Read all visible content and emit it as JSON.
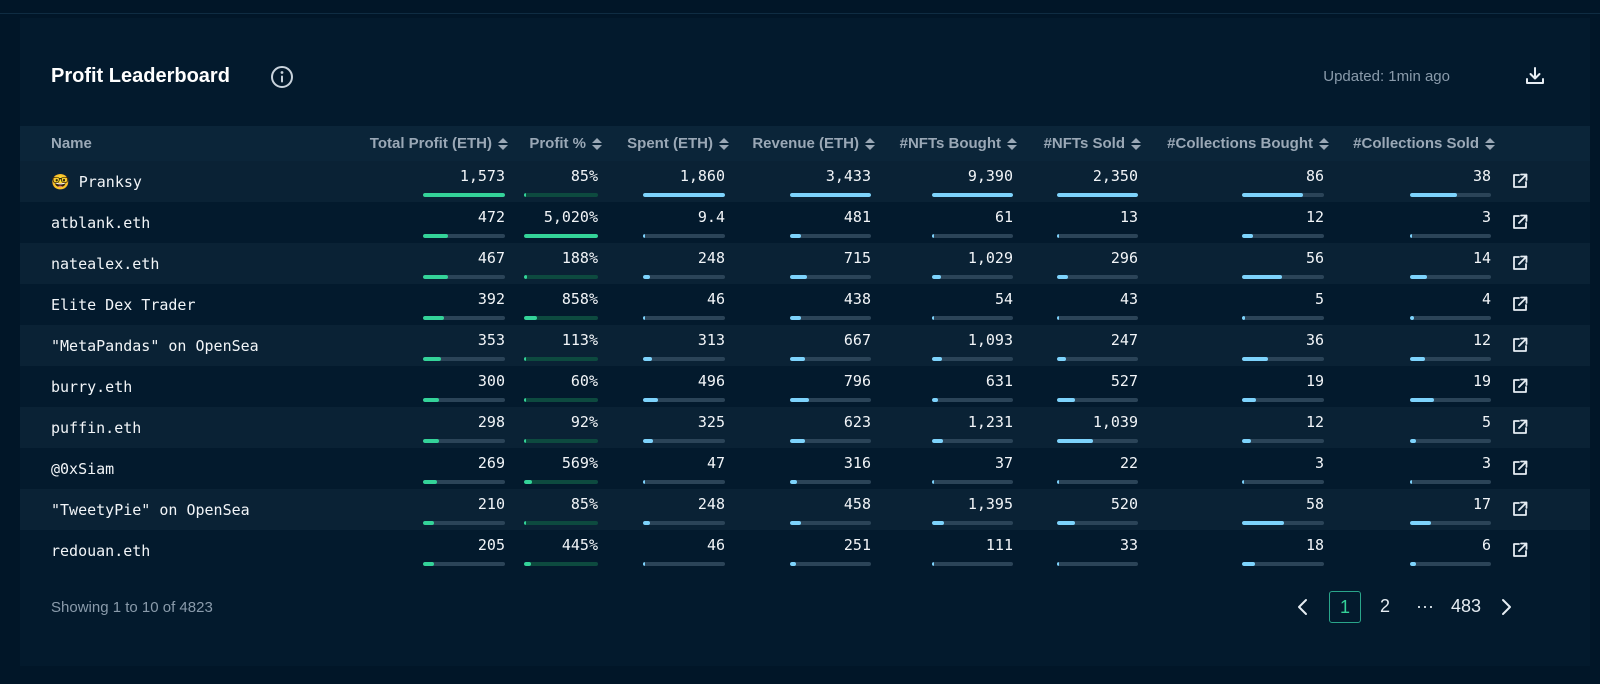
{
  "header": {
    "title": "Profit Leaderboard",
    "updated": "Updated: 1min ago"
  },
  "table": {
    "columns": [
      "Name",
      "Total Profit (ETH)",
      "Profit %",
      "Spent (ETH)",
      "Revenue (ETH)",
      "#NFTs Bought",
      "#NFTs Sold",
      "#Collections Bought",
      "#Collections Sold"
    ],
    "rows": [
      {
        "name": "🤓 Pranksy",
        "values": [
          "1,573",
          "85%",
          "1,860",
          "3,433",
          "9,390",
          "2,350",
          "86",
          "38"
        ],
        "bars": [
          1.0,
          0.017,
          1.0,
          1.0,
          1.0,
          1.0,
          0.74,
          0.58
        ]
      },
      {
        "name": "atblank.eth",
        "values": [
          "472",
          "5,020%",
          "9.4",
          "481",
          "61",
          "13",
          "12",
          "3"
        ],
        "bars": [
          0.3,
          1.0,
          0.01,
          0.14,
          0.01,
          0.01,
          0.14,
          0.03
        ]
      },
      {
        "name": "natealex.eth",
        "values": [
          "467",
          "188%",
          "248",
          "715",
          "1,029",
          "296",
          "56",
          "14"
        ],
        "bars": [
          0.3,
          0.04,
          0.09,
          0.21,
          0.11,
          0.13,
          0.49,
          0.21
        ]
      },
      {
        "name": "Elite Dex Trader",
        "values": [
          "392",
          "858%",
          "46",
          "438",
          "54",
          "43",
          "5",
          "4"
        ],
        "bars": [
          0.25,
          0.17,
          0.02,
          0.13,
          0.01,
          0.02,
          0.04,
          0.05
        ]
      },
      {
        "name": "\"MetaPandas\" on OpenSea",
        "values": [
          "353",
          "113%",
          "313",
          "667",
          "1,093",
          "247",
          "36",
          "12"
        ],
        "bars": [
          0.22,
          0.02,
          0.11,
          0.19,
          0.12,
          0.11,
          0.32,
          0.18
        ]
      },
      {
        "name": "burry.eth",
        "values": [
          "300",
          "60%",
          "496",
          "796",
          "631",
          "527",
          "19",
          "19"
        ],
        "bars": [
          0.19,
          0.01,
          0.18,
          0.23,
          0.07,
          0.22,
          0.17,
          0.3
        ]
      },
      {
        "name": "puffin.eth",
        "values": [
          "298",
          "92%",
          "325",
          "623",
          "1,231",
          "1,039",
          "12",
          "5"
        ],
        "bars": [
          0.19,
          0.02,
          0.12,
          0.18,
          0.13,
          0.44,
          0.11,
          0.07
        ]
      },
      {
        "name": "@0xSiam",
        "values": [
          "269",
          "569%",
          "47",
          "316",
          "37",
          "22",
          "3",
          "3"
        ],
        "bars": [
          0.17,
          0.11,
          0.02,
          0.09,
          0.01,
          0.01,
          0.03,
          0.03
        ]
      },
      {
        "name": "\"TweetyPie\" on OpenSea",
        "values": [
          "210",
          "85%",
          "248",
          "458",
          "1,395",
          "520",
          "58",
          "17"
        ],
        "bars": [
          0.13,
          0.02,
          0.09,
          0.13,
          0.15,
          0.22,
          0.51,
          0.26
        ]
      },
      {
        "name": "redouan.eth",
        "values": [
          "205",
          "445%",
          "46",
          "251",
          "111",
          "33",
          "18",
          "6"
        ],
        "bars": [
          0.13,
          0.09,
          0.02,
          0.07,
          0.01,
          0.01,
          0.16,
          0.08
        ]
      }
    ]
  },
  "footer": {
    "showing": "Showing 1 to 10 of 4823",
    "pages": [
      "1",
      "2",
      "···",
      "483"
    ],
    "active_page": "1"
  },
  "colors": {
    "background": "#011628",
    "panel": "#031a2d",
    "row_alt": "#0a2235",
    "green": "#34d399",
    "blue": "#7dd3fc",
    "track": "#2b4458"
  },
  "icons": {
    "title": "info-icon",
    "download": "download-icon",
    "row_action": "external-link-icon",
    "prev": "chevron-left-icon",
    "next": "chevron-right-icon"
  }
}
